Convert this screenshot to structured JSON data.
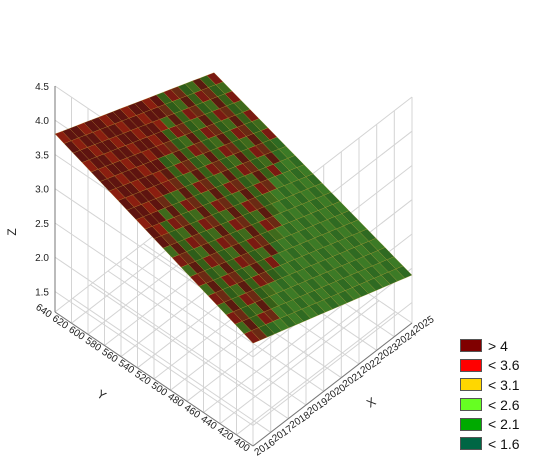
{
  "chart_data": {
    "type": "surface",
    "title": "",
    "xlabel": "X",
    "ylabel": "Y",
    "zlabel": "Z",
    "x_ticks": [
      "2016",
      "2017",
      "2018",
      "2019",
      "2020",
      "2021",
      "2022",
      "2023",
      "2024",
      "2025"
    ],
    "y_ticks": [
      "400",
      "420",
      "440",
      "460",
      "480",
      "500",
      "520",
      "540",
      "560",
      "580",
      "600",
      "620",
      "640"
    ],
    "z_ticks": [
      "1.5",
      "2.0",
      "2.5",
      "3.0",
      "3.5",
      "4.0",
      "4.5"
    ],
    "xlim": [
      2016,
      2025
    ],
    "ylim": [
      400,
      640
    ],
    "zlim": [
      1.2,
      4.5
    ],
    "surface_corners": [
      {
        "x": 2016,
        "y": 640,
        "z": 3.8
      },
      {
        "x": 2025,
        "y": 640,
        "z": 2.9
      },
      {
        "x": 2025,
        "y": 400,
        "z": 1.9
      },
      {
        "x": 2016,
        "y": 400,
        "z": 2.7
      }
    ],
    "grid": true,
    "legend": {
      "placement": "bottom-right",
      "entries": [
        {
          "label": "> 4",
          "color": "#800000"
        },
        {
          "label": "< 3.6",
          "color": "#ff0000"
        },
        {
          "label": "< 3.1",
          "color": "#ffd700"
        },
        {
          "label": "< 2.6",
          "color": "#66ff22"
        },
        {
          "label": "< 2.1",
          "color": "#00aa00"
        },
        {
          "label": "< 1.6",
          "color": "#006644"
        }
      ]
    }
  }
}
